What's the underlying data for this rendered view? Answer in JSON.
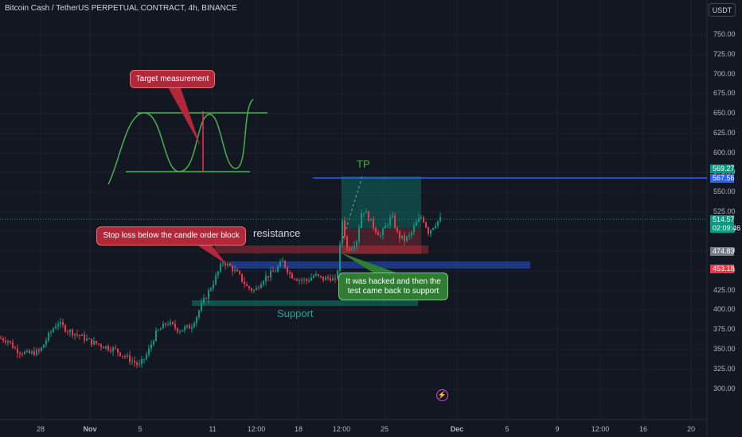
{
  "header": {
    "symbol_title": "Bitcoin Cash / TetherUS PERPETUAL CONTRACT, 4h, BINANCE",
    "currency": "USDT"
  },
  "y_axis": {
    "ticks": [
      "750.00",
      "725.00",
      "700.00",
      "675.00",
      "650.00",
      "625.00",
      "600.00",
      "575.00",
      "550.00",
      "525.00",
      "500.00",
      "475.00",
      "450.00",
      "425.00",
      "400.00",
      "375.00",
      "350.00",
      "325.00",
      "300.00"
    ]
  },
  "x_axis": {
    "ticks": [
      "28",
      "Nov",
      "5",
      "11",
      "12:00",
      "18",
      "12:00",
      "25",
      "Dec",
      "5",
      "9",
      "12:00",
      "16",
      "20"
    ]
  },
  "price_badges": {
    "level_top": {
      "value": "569.27",
      "color": "#089981"
    },
    "level_blue": {
      "value": "567.56",
      "color": "#2962ff"
    },
    "last_price": {
      "value": "514.57",
      "countdown": "02:09:46",
      "color": "#089981"
    },
    "level_grey": {
      "value": "474.83",
      "color": "#787b86"
    },
    "level_red": {
      "value": "453.18",
      "color": "#f23645"
    }
  },
  "annotations": {
    "target_measurement": "Target measurement",
    "stop_loss": "Stop loss below the candle order block",
    "resistance": "resistance",
    "support": "Support",
    "tp": "TP",
    "hacked_line1": "It was hacked and then the",
    "hacked_line2": "test came back to support"
  },
  "icons": {
    "alert": "lightning-icon"
  },
  "colors": {
    "background": "#131722",
    "bull": "#089981",
    "bear": "#f23645",
    "hand_drawn": "#4caf50",
    "tp_line": "#2962ff",
    "callout_red": "#b2283a",
    "callout_green": "#2e7d32"
  }
}
